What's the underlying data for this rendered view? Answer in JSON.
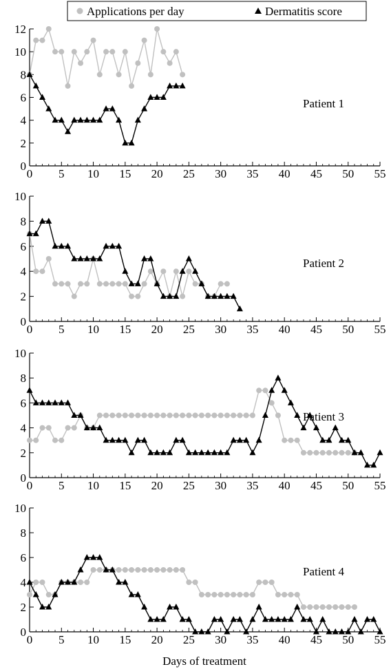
{
  "figure": {
    "legend": {
      "apps_label": "Applications per day",
      "score_label": "Dermatitis score"
    },
    "xlabel": "Days of treatment",
    "colors": {
      "applications": "#c0c0c0",
      "dermatitis": "#000000"
    }
  },
  "chart_data": [
    {
      "type": "line",
      "annotation": "Patient 1",
      "xlim": [
        0,
        55
      ],
      "ylim": [
        0,
        12
      ],
      "xticks": [
        0,
        5,
        10,
        15,
        20,
        25,
        30,
        35,
        40,
        45,
        50,
        55
      ],
      "yticks": [
        0,
        2,
        4,
        6,
        8,
        10,
        12
      ],
      "series": [
        {
          "name": "Applications per day",
          "marker": "circle",
          "x": [
            0,
            1,
            2,
            3,
            4,
            5,
            6,
            7,
            8,
            9,
            10,
            11,
            12,
            13,
            14,
            15,
            16,
            17,
            18,
            19,
            20,
            21,
            22,
            23,
            24
          ],
          "y": [
            8,
            11,
            11,
            12,
            10,
            10,
            7,
            10,
            9,
            10,
            11,
            8,
            10,
            10,
            8,
            10,
            7,
            9,
            11,
            8,
            12,
            10,
            9,
            10,
            8
          ]
        },
        {
          "name": "Dermatitis score",
          "marker": "triangle",
          "x": [
            0,
            1,
            2,
            3,
            4,
            5,
            6,
            7,
            8,
            9,
            10,
            11,
            12,
            13,
            14,
            15,
            16,
            17,
            18,
            19,
            20,
            21,
            22,
            23,
            24
          ],
          "y": [
            8,
            7,
            6,
            5,
            4,
            4,
            3,
            4,
            4,
            4,
            4,
            4,
            5,
            5,
            4,
            2,
            2,
            4,
            5,
            6,
            6,
            6,
            7,
            7,
            7
          ]
        }
      ]
    },
    {
      "type": "line",
      "annotation": "Patient 2",
      "xlim": [
        0,
        55
      ],
      "ylim": [
        0,
        10
      ],
      "xticks": [
        0,
        5,
        10,
        15,
        20,
        25,
        30,
        35,
        40,
        45,
        50,
        55
      ],
      "yticks": [
        0,
        2,
        4,
        6,
        8,
        10
      ],
      "series": [
        {
          "name": "Applications per day",
          "marker": "circle",
          "x": [
            0,
            1,
            2,
            3,
            4,
            5,
            6,
            7,
            8,
            9,
            10,
            11,
            12,
            13,
            14,
            15,
            16,
            17,
            18,
            19,
            20,
            21,
            22,
            23,
            24,
            25,
            26,
            27,
            28,
            29,
            30,
            31
          ],
          "y": [
            7,
            4,
            4,
            5,
            3,
            3,
            3,
            2,
            3,
            3,
            5,
            3,
            3,
            3,
            3,
            3,
            2,
            2,
            3,
            4,
            3,
            4,
            2,
            4,
            2,
            4,
            3,
            3,
            2,
            2,
            3,
            3
          ]
        },
        {
          "name": "Dermatitis score",
          "marker": "triangle",
          "x": [
            0,
            1,
            2,
            3,
            4,
            5,
            6,
            7,
            8,
            9,
            10,
            11,
            12,
            13,
            14,
            15,
            16,
            17,
            18,
            19,
            20,
            21,
            22,
            23,
            24,
            25,
            26,
            27,
            28,
            29,
            30,
            31,
            32,
            33
          ],
          "y": [
            7,
            7,
            8,
            8,
            6,
            6,
            6,
            5,
            5,
            5,
            5,
            5,
            6,
            6,
            6,
            4,
            3,
            3,
            5,
            5,
            3,
            2,
            2,
            2,
            4,
            5,
            4,
            3,
            2,
            2,
            2,
            2,
            2,
            1
          ]
        }
      ]
    },
    {
      "type": "line",
      "annotation": "Patient 3",
      "xlim": [
        0,
        55
      ],
      "ylim": [
        0,
        10
      ],
      "xticks": [
        0,
        5,
        10,
        15,
        20,
        25,
        30,
        35,
        40,
        45,
        50,
        55
      ],
      "yticks": [
        0,
        2,
        4,
        6,
        8,
        10
      ],
      "series": [
        {
          "name": "Applications per day",
          "marker": "circle",
          "x": [
            0,
            1,
            2,
            3,
            4,
            5,
            6,
            7,
            8,
            9,
            10,
            11,
            12,
            13,
            14,
            15,
            16,
            17,
            18,
            19,
            20,
            21,
            22,
            23,
            24,
            25,
            26,
            27,
            28,
            29,
            30,
            31,
            32,
            33,
            34,
            35,
            36,
            37,
            38,
            39,
            40,
            41,
            42,
            43,
            44,
            45,
            46,
            47,
            48,
            49,
            50,
            51
          ],
          "y": [
            3,
            3,
            4,
            4,
            3,
            3,
            4,
            4,
            5,
            4,
            4,
            5,
            5,
            5,
            5,
            5,
            5,
            5,
            5,
            5,
            5,
            5,
            5,
            5,
            5,
            5,
            5,
            5,
            5,
            5,
            5,
            5,
            5,
            5,
            5,
            5,
            7,
            7,
            6,
            5,
            3,
            3,
            3,
            2,
            2,
            2,
            2,
            2,
            2,
            2,
            2,
            2
          ]
        },
        {
          "name": "Dermatitis score",
          "marker": "triangle",
          "x": [
            0,
            1,
            2,
            3,
            4,
            5,
            6,
            7,
            8,
            9,
            10,
            11,
            12,
            13,
            14,
            15,
            16,
            17,
            18,
            19,
            20,
            21,
            22,
            23,
            24,
            25,
            26,
            27,
            28,
            29,
            30,
            31,
            32,
            33,
            34,
            35,
            36,
            37,
            38,
            39,
            40,
            41,
            42,
            43,
            44,
            45,
            46,
            47,
            48,
            49,
            50,
            51,
            52,
            53,
            54,
            55
          ],
          "y": [
            7,
            6,
            6,
            6,
            6,
            6,
            6,
            5,
            5,
            4,
            4,
            4,
            3,
            3,
            3,
            3,
            2,
            3,
            3,
            2,
            2,
            2,
            2,
            3,
            3,
            2,
            2,
            2,
            2,
            2,
            2,
            2,
            3,
            3,
            3,
            2,
            3,
            5,
            7,
            8,
            7,
            6,
            5,
            4,
            5,
            4,
            3,
            3,
            4,
            3,
            3,
            2,
            2,
            1,
            1,
            2
          ]
        }
      ]
    },
    {
      "type": "line",
      "annotation": "Patient 4",
      "xlim": [
        0,
        55
      ],
      "ylim": [
        0,
        10
      ],
      "xticks": [
        0,
        5,
        10,
        15,
        20,
        25,
        30,
        35,
        40,
        45,
        50,
        55
      ],
      "yticks": [
        0,
        2,
        4,
        6,
        8,
        10
      ],
      "series": [
        {
          "name": "Applications per day",
          "marker": "circle",
          "x": [
            0,
            1,
            2,
            3,
            4,
            5,
            6,
            7,
            8,
            9,
            10,
            11,
            12,
            13,
            14,
            15,
            16,
            17,
            18,
            19,
            20,
            21,
            22,
            23,
            24,
            25,
            26,
            27,
            28,
            29,
            30,
            31,
            32,
            33,
            34,
            35,
            36,
            37,
            38,
            39,
            40,
            41,
            42,
            43,
            44,
            45,
            46,
            47,
            48,
            49,
            50,
            51
          ],
          "y": [
            3,
            4,
            4,
            3,
            3,
            4,
            4,
            4,
            4,
            4,
            5,
            5,
            5,
            5,
            5,
            5,
            5,
            5,
            5,
            5,
            5,
            5,
            5,
            5,
            5,
            4,
            4,
            3,
            3,
            3,
            3,
            3,
            3,
            3,
            3,
            3,
            4,
            4,
            4,
            3,
            3,
            3,
            3,
            2,
            2,
            2,
            2,
            2,
            2,
            2,
            2,
            2
          ]
        },
        {
          "name": "Dermatitis score",
          "marker": "triangle",
          "x": [
            0,
            1,
            2,
            3,
            4,
            5,
            6,
            7,
            8,
            9,
            10,
            11,
            12,
            13,
            14,
            15,
            16,
            17,
            18,
            19,
            20,
            21,
            22,
            23,
            24,
            25,
            26,
            27,
            28,
            29,
            30,
            31,
            32,
            33,
            34,
            35,
            36,
            37,
            38,
            39,
            40,
            41,
            42,
            43,
            44,
            45,
            46,
            47,
            48,
            49,
            50,
            51,
            52,
            53,
            54,
            55
          ],
          "y": [
            4,
            3,
            2,
            2,
            3,
            4,
            4,
            4,
            5,
            6,
            6,
            6,
            5,
            5,
            4,
            4,
            3,
            3,
            2,
            1,
            1,
            1,
            2,
            2,
            1,
            1,
            0,
            0,
            0,
            1,
            1,
            0,
            1,
            1,
            0,
            1,
            2,
            1,
            1,
            1,
            1,
            1,
            2,
            1,
            1,
            0,
            1,
            0,
            0,
            0,
            0,
            1,
            0,
            1,
            1,
            0
          ]
        }
      ]
    }
  ]
}
